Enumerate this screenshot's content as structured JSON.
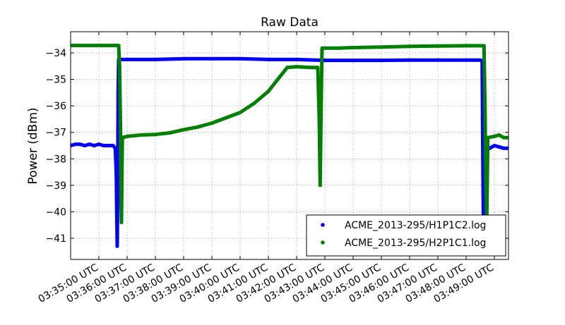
{
  "chart_data": {
    "type": "scatter",
    "title": "Raw Data",
    "xlabel": "",
    "ylabel": "Power (dBm)",
    "x_unit": "minutes (UTC clock)",
    "xlim": [
      "03:34:00 UTC",
      "03:49:30 UTC"
    ],
    "ylim": [
      -41.8,
      -33.2
    ],
    "grid": true,
    "legend_position": "lower-right",
    "x_ticks": [
      "03:35:00 UTC",
      "03:36:00 UTC",
      "03:37:00 UTC",
      "03:38:00 UTC",
      "03:39:00 UTC",
      "03:40:00 UTC",
      "03:41:00 UTC",
      "03:42:00 UTC",
      "03:43:00 UTC",
      "03:44:00 UTC",
      "03:45:00 UTC",
      "03:46:00 UTC",
      "03:47:00 UTC",
      "03:48:00 UTC",
      "03:49:00 UTC"
    ],
    "y_ticks": [
      -34,
      -35,
      -36,
      -37,
      -38,
      -39,
      -40,
      -41
    ],
    "series": [
      {
        "name": "ACME_2013-295/H1P1C2.log",
        "color": "#0000ff",
        "points": [
          [
            "03:34:00",
            -37.5
          ],
          [
            "03:34:10",
            -37.45
          ],
          [
            "03:34:20",
            -37.45
          ],
          [
            "03:34:30",
            -37.5
          ],
          [
            "03:34:40",
            -37.45
          ],
          [
            "03:34:50",
            -37.5
          ],
          [
            "03:35:00",
            -37.45
          ],
          [
            "03:35:10",
            -37.5
          ],
          [
            "03:35:20",
            -37.5
          ],
          [
            "03:35:30",
            -37.5
          ],
          [
            "03:35:35",
            -37.6
          ],
          [
            "03:35:37",
            -38.6
          ],
          [
            "03:35:38",
            -40.0
          ],
          [
            "03:35:39",
            -41.3
          ],
          [
            "03:35:40",
            -39.0
          ],
          [
            "03:35:41",
            -35.5
          ],
          [
            "03:35:42",
            -34.25
          ],
          [
            "03:36:00",
            -34.25
          ],
          [
            "03:37:00",
            -34.25
          ],
          [
            "03:38:00",
            -34.22
          ],
          [
            "03:39:00",
            -34.22
          ],
          [
            "03:40:00",
            -34.22
          ],
          [
            "03:41:00",
            -34.25
          ],
          [
            "03:42:00",
            -34.25
          ],
          [
            "03:43:00",
            -34.28
          ],
          [
            "03:44:00",
            -34.28
          ],
          [
            "03:45:00",
            -34.28
          ],
          [
            "03:46:00",
            -34.27
          ],
          [
            "03:47:00",
            -34.27
          ],
          [
            "03:48:00",
            -34.27
          ],
          [
            "03:48:30",
            -34.27
          ],
          [
            "03:48:34",
            -34.3
          ],
          [
            "03:48:35",
            -36.5
          ],
          [
            "03:48:36",
            -39.0
          ],
          [
            "03:48:37",
            -41.0
          ],
          [
            "03:48:38",
            -38.0
          ],
          [
            "03:48:40",
            -37.55
          ],
          [
            "03:48:50",
            -37.6
          ],
          [
            "03:49:00",
            -37.5
          ],
          [
            "03:49:10",
            -37.55
          ],
          [
            "03:49:20",
            -37.6
          ],
          [
            "03:49:30",
            -37.6
          ]
        ]
      },
      {
        "name": "ACME_2013-295/H2P1C1.log",
        "color": "#008000",
        "points": [
          [
            "03:34:00",
            -33.72
          ],
          [
            "03:34:30",
            -33.72
          ],
          [
            "03:35:00",
            -33.72
          ],
          [
            "03:35:30",
            -33.72
          ],
          [
            "03:35:42",
            -33.72
          ],
          [
            "03:35:44",
            -34.5
          ],
          [
            "03:35:46",
            -37.0
          ],
          [
            "03:35:47",
            -39.5
          ],
          [
            "03:35:48",
            -40.4
          ],
          [
            "03:35:49",
            -38.5
          ],
          [
            "03:35:50",
            -37.2
          ],
          [
            "03:36:00",
            -37.15
          ],
          [
            "03:36:30",
            -37.1
          ],
          [
            "03:37:00",
            -37.08
          ],
          [
            "03:37:30",
            -37.02
          ],
          [
            "03:38:00",
            -36.9
          ],
          [
            "03:38:30",
            -36.8
          ],
          [
            "03:39:00",
            -36.65
          ],
          [
            "03:39:30",
            -36.45
          ],
          [
            "03:40:00",
            -36.25
          ],
          [
            "03:40:30",
            -35.9
          ],
          [
            "03:41:00",
            -35.45
          ],
          [
            "03:41:20",
            -35.0
          ],
          [
            "03:41:40",
            -34.55
          ],
          [
            "03:42:00",
            -34.52
          ],
          [
            "03:42:30",
            -34.55
          ],
          [
            "03:42:45",
            -34.55
          ],
          [
            "03:42:48",
            -36.5
          ],
          [
            "03:42:50",
            -39.0
          ],
          [
            "03:42:52",
            -36.0
          ],
          [
            "03:42:54",
            -33.82
          ],
          [
            "03:43:30",
            -33.82
          ],
          [
            "03:44:00",
            -33.8
          ],
          [
            "03:45:00",
            -33.78
          ],
          [
            "03:46:00",
            -33.75
          ],
          [
            "03:47:00",
            -33.74
          ],
          [
            "03:48:00",
            -33.73
          ],
          [
            "03:48:38",
            -33.73
          ],
          [
            "03:48:40",
            -36.0
          ],
          [
            "03:48:42",
            -39.0
          ],
          [
            "03:48:44",
            -40.2
          ],
          [
            "03:48:46",
            -37.2
          ],
          [
            "03:49:00",
            -37.15
          ],
          [
            "03:49:10",
            -37.1
          ],
          [
            "03:49:20",
            -37.2
          ],
          [
            "03:49:30",
            -37.2
          ]
        ]
      }
    ]
  }
}
